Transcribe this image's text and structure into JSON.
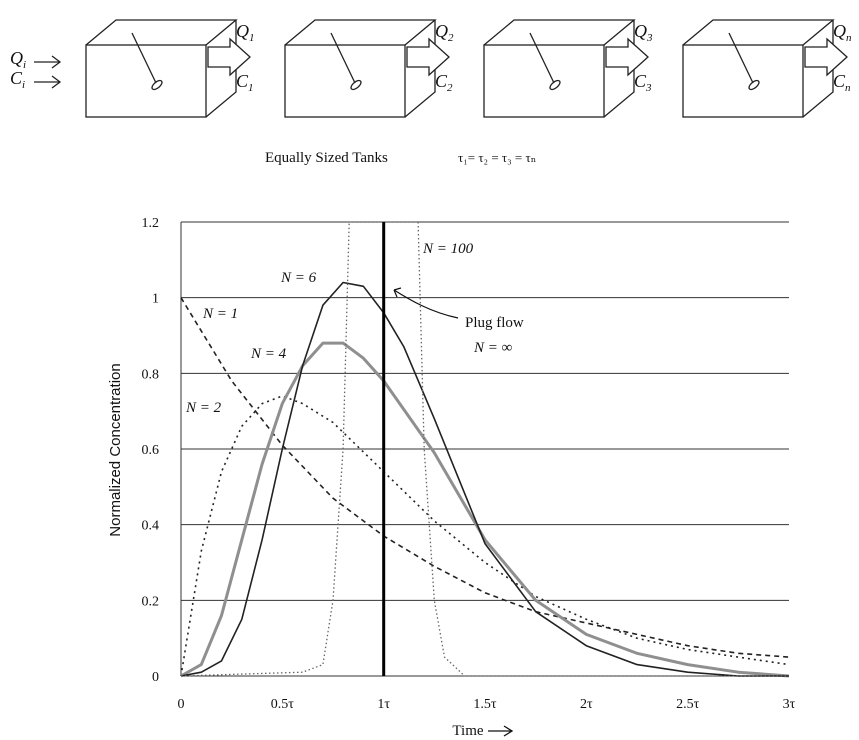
{
  "diagram": {
    "inlet": {
      "flow": "Q",
      "flow_sub": "i",
      "conc": "C",
      "conc_sub": "i"
    },
    "tanks": [
      {
        "flow": "Q",
        "flow_sub": "1",
        "conc": "C",
        "conc_sub": "1"
      },
      {
        "flow": "Q",
        "flow_sub": "2",
        "conc": "C",
        "conc_sub": "2"
      },
      {
        "flow": "Q",
        "flow_sub": "3",
        "conc": "C",
        "conc_sub": "3"
      },
      {
        "flow": "Q",
        "flow_sub": "n",
        "conc": "C",
        "conc_sub": "n"
      }
    ],
    "caption_left": "Equally Sized Tanks",
    "caption_right": "τ₁= τ₂ = τ₃ = τₙ"
  },
  "chart_data": {
    "type": "line",
    "title": "",
    "xlabel": "Time",
    "ylabel": "Normalized Concentration",
    "xlim": [
      0,
      3
    ],
    "ylim": [
      0,
      1.2
    ],
    "grid": "horizontal",
    "x_ticks": [
      0,
      0.5,
      1,
      1.5,
      2,
      2.5,
      3
    ],
    "x_tick_labels": [
      "0",
      "0.5τ",
      "1τ",
      "1.5τ",
      "2τ",
      "2.5τ",
      "3τ"
    ],
    "y_ticks": [
      0,
      0.2,
      0.4,
      0.6,
      0.8,
      1,
      1.2
    ],
    "y_tick_labels": [
      "0",
      "0.2",
      "0.4",
      "0.6",
      "0.8",
      "1",
      "1.2"
    ],
    "series": [
      {
        "name": "N = 1",
        "style": "dashed",
        "color": "#222222",
        "x": [
          0,
          0.25,
          0.5,
          0.75,
          1,
          1.25,
          1.5,
          1.75,
          2,
          2.25,
          2.5,
          2.75,
          3
        ],
        "y": [
          1.0,
          0.78,
          0.61,
          0.47,
          0.37,
          0.29,
          0.22,
          0.17,
          0.14,
          0.11,
          0.08,
          0.06,
          0.05
        ]
      },
      {
        "name": "N = 2",
        "style": "dotted",
        "color": "#222222",
        "x": [
          0,
          0.1,
          0.2,
          0.3,
          0.4,
          0.5,
          0.6,
          0.75,
          1,
          1.25,
          1.5,
          1.75,
          2,
          2.25,
          2.5,
          2.75,
          3
        ],
        "y": [
          0.0,
          0.33,
          0.54,
          0.66,
          0.72,
          0.74,
          0.72,
          0.67,
          0.54,
          0.41,
          0.3,
          0.21,
          0.15,
          0.1,
          0.07,
          0.05,
          0.03
        ]
      },
      {
        "name": "N = 4",
        "style": "solid-gray",
        "color": "#8f8f8f",
        "x": [
          0,
          0.1,
          0.2,
          0.3,
          0.4,
          0.5,
          0.6,
          0.7,
          0.8,
          0.9,
          1,
          1.25,
          1.5,
          1.75,
          2,
          2.25,
          2.5,
          2.75,
          3
        ],
        "y": [
          0.0,
          0.03,
          0.16,
          0.36,
          0.56,
          0.72,
          0.82,
          0.88,
          0.88,
          0.84,
          0.78,
          0.59,
          0.36,
          0.2,
          0.11,
          0.06,
          0.03,
          0.01,
          0.0
        ]
      },
      {
        "name": "N = 6",
        "style": "solid",
        "color": "#222222",
        "x": [
          0,
          0.1,
          0.2,
          0.3,
          0.4,
          0.5,
          0.6,
          0.7,
          0.8,
          0.9,
          1,
          1.1,
          1.25,
          1.5,
          1.75,
          2,
          2.25,
          2.5,
          2.75,
          3
        ],
        "y": [
          0.0,
          0.01,
          0.04,
          0.15,
          0.36,
          0.6,
          0.82,
          0.98,
          1.04,
          1.03,
          0.96,
          0.87,
          0.68,
          0.35,
          0.17,
          0.08,
          0.03,
          0.01,
          0.0,
          0.0
        ]
      },
      {
        "name": "N = 100",
        "style": "dotted-fine",
        "color": "#555555",
        "x": [
          0,
          0.6,
          0.7,
          0.75,
          0.8,
          0.83,
          0.85,
          0.9,
          1,
          1.1,
          1.15,
          1.17,
          1.2,
          1.25,
          1.3,
          1.4,
          3
        ],
        "y": [
          0.0,
          0.01,
          0.03,
          0.2,
          0.6,
          1.2,
          1.2,
          1.2,
          1.2,
          1.2,
          1.2,
          1.2,
          0.6,
          0.2,
          0.05,
          0.0,
          0.0
        ]
      },
      {
        "name": "Plug flow N = ∞",
        "style": "vertical",
        "color": "#000000",
        "x": [
          1,
          1
        ],
        "y": [
          0,
          1.2
        ]
      }
    ],
    "annotations": {
      "n1": {
        "text": "N = 1"
      },
      "n2": {
        "text": "N = 2"
      },
      "n4": {
        "text": "N = 4"
      },
      "n6": {
        "text": "N = 6"
      },
      "n100": {
        "text": "N = 100"
      },
      "plug_line1": "Plug flow",
      "plug_line2": "N = ∞"
    }
  }
}
